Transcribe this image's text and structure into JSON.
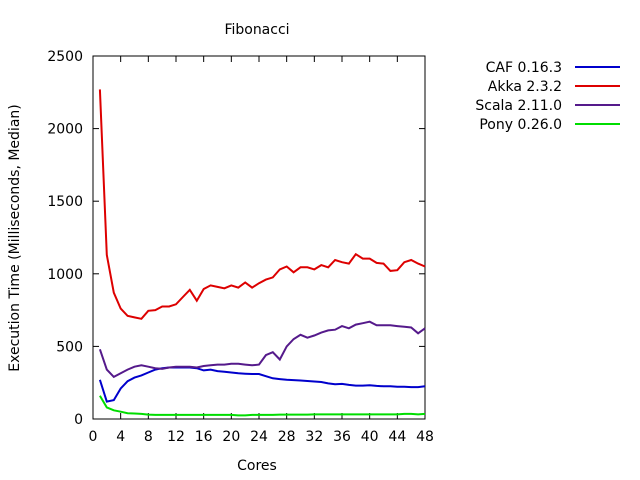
{
  "chart_data": {
    "type": "line",
    "title": "Fibonacci",
    "xlabel": "Cores",
    "ylabel": "Execution Time (Milliseconds, Median)",
    "xlim": [
      0,
      48
    ],
    "ylim": [
      0,
      2500
    ],
    "xticks": [
      0,
      4,
      8,
      12,
      16,
      20,
      24,
      28,
      32,
      36,
      40,
      44,
      48
    ],
    "yticks": [
      0,
      500,
      1000,
      1500,
      2000,
      2500
    ],
    "grid": false,
    "legend_position": "outside-top-right",
    "x": [
      1,
      2,
      3,
      4,
      5,
      6,
      7,
      8,
      9,
      10,
      11,
      12,
      13,
      14,
      15,
      16,
      17,
      18,
      19,
      20,
      21,
      22,
      23,
      24,
      25,
      26,
      27,
      28,
      29,
      30,
      31,
      32,
      33,
      34,
      35,
      36,
      37,
      38,
      39,
      40,
      41,
      42,
      43,
      44,
      45,
      46,
      47,
      48
    ],
    "series": [
      {
        "name": "CAF 0.16.3",
        "color": "#0000cc",
        "values": [
          270,
          120,
          130,
          210,
          260,
          285,
          300,
          320,
          340,
          350,
          355,
          355,
          355,
          355,
          350,
          335,
          340,
          330,
          325,
          320,
          315,
          312,
          310,
          310,
          295,
          280,
          275,
          270,
          268,
          265,
          262,
          258,
          255,
          245,
          240,
          242,
          235,
          230,
          230,
          232,
          228,
          225,
          225,
          222,
          222,
          220,
          220,
          225
        ]
      },
      {
        "name": "Akka 2.3.2",
        "color": "#dd0000",
        "values": [
          2270,
          1130,
          870,
          760,
          710,
          700,
          690,
          745,
          750,
          775,
          775,
          790,
          840,
          890,
          815,
          895,
          920,
          910,
          900,
          920,
          905,
          940,
          905,
          935,
          960,
          975,
          1030,
          1050,
          1010,
          1045,
          1045,
          1030,
          1060,
          1045,
          1095,
          1080,
          1070,
          1135,
          1105,
          1105,
          1075,
          1070,
          1020,
          1025,
          1080,
          1095,
          1070,
          1050
        ]
      },
      {
        "name": "Scala 2.11.0",
        "color": "#551a8b",
        "values": [
          480,
          340,
          290,
          315,
          340,
          360,
          370,
          360,
          350,
          345,
          355,
          360,
          360,
          360,
          355,
          365,
          370,
          375,
          375,
          380,
          380,
          375,
          370,
          375,
          440,
          460,
          410,
          500,
          550,
          580,
          560,
          575,
          595,
          610,
          615,
          640,
          625,
          650,
          660,
          670,
          645,
          645,
          645,
          640,
          635,
          630,
          590,
          625
        ]
      },
      {
        "name": "Pony 0.26.0",
        "color": "#00dd00",
        "values": [
          160,
          80,
          60,
          50,
          40,
          38,
          35,
          30,
          28,
          28,
          28,
          28,
          28,
          28,
          28,
          28,
          28,
          28,
          28,
          28,
          25,
          25,
          28,
          28,
          28,
          28,
          30,
          30,
          30,
          30,
          30,
          32,
          32,
          32,
          32,
          32,
          32,
          32,
          32,
          32,
          32,
          32,
          32,
          32,
          35,
          35,
          32,
          35
        ]
      }
    ]
  }
}
